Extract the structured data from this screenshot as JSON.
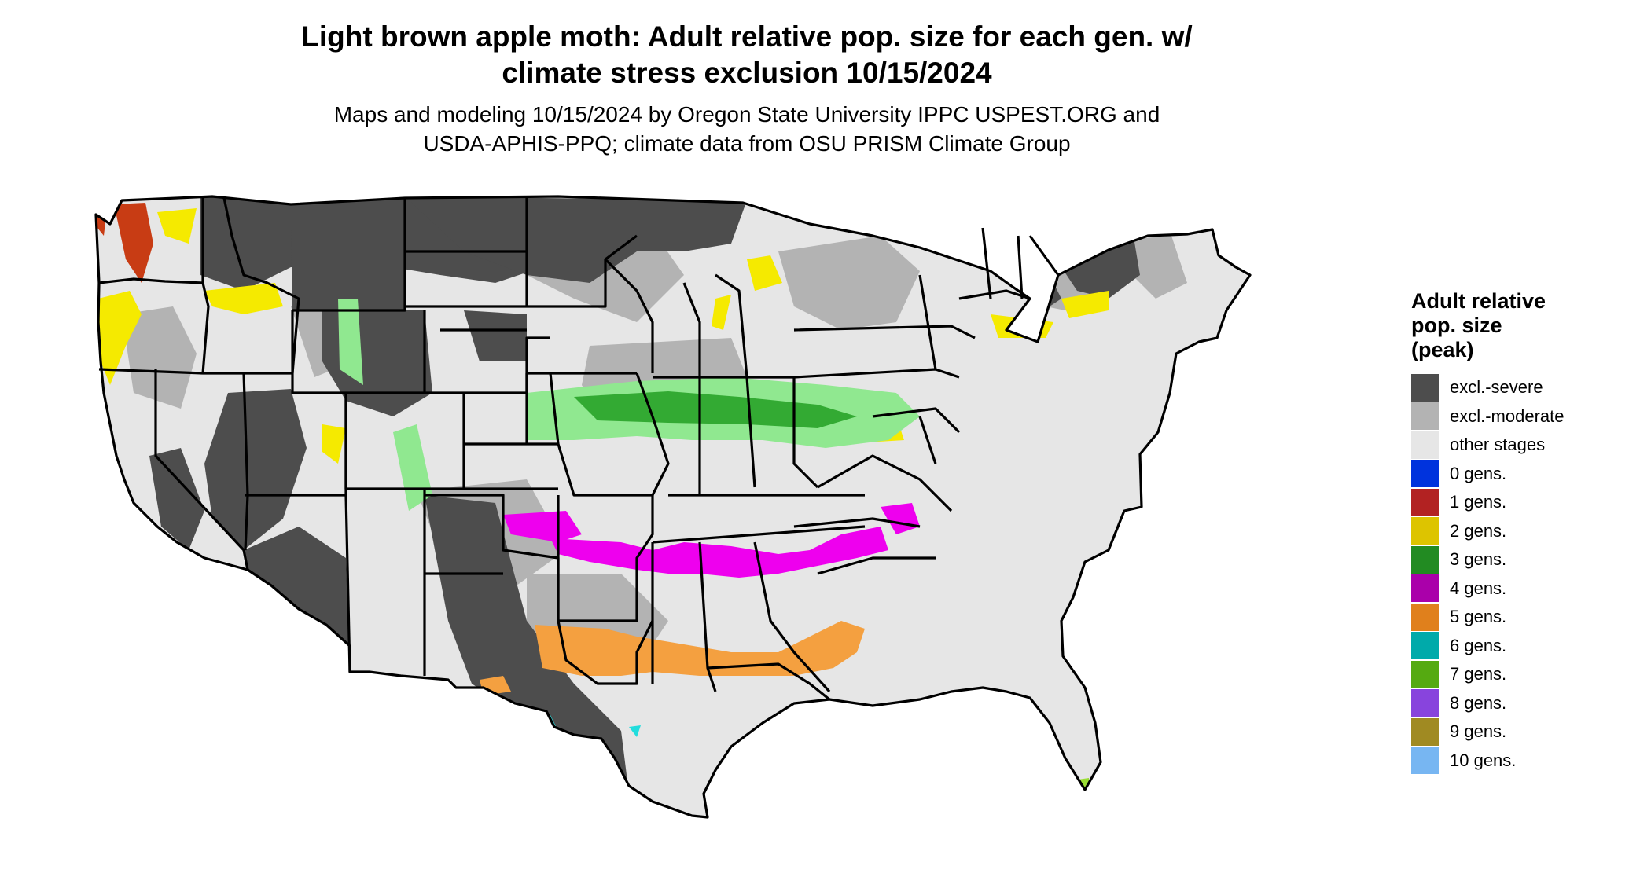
{
  "title": {
    "line1": "Light brown apple moth: Adult relative pop. size for each gen. w/",
    "line2": "climate stress exclusion 10/15/2024"
  },
  "subtitle": {
    "line1": "Maps and modeling 10/15/2024 by Oregon State University IPPC USPEST.ORG and",
    "line2": "USDA-APHIS-PPQ; climate data from OSU PRISM Climate Group"
  },
  "legend": {
    "title_lines": [
      "Adult relative",
      "pop. size",
      "(peak)"
    ],
    "items": [
      {
        "label": "excl.-severe",
        "color": "#4d4d4d"
      },
      {
        "label": "excl.-moderate",
        "color": "#b3b3b3"
      },
      {
        "label": "other stages",
        "color": "#e6e6e6"
      },
      {
        "label": "0 gens.",
        "color": "#0033dd"
      },
      {
        "label": "1 gens.",
        "color": "#b22222"
      },
      {
        "label": "2 gens.",
        "color": "#ddc400"
      },
      {
        "label": "3 gens.",
        "color": "#228b22"
      },
      {
        "label": "4 gens.",
        "color": "#aa00aa"
      },
      {
        "label": "5 gens.",
        "color": "#e0801c"
      },
      {
        "label": "6 gens.",
        "color": "#00aaaa"
      },
      {
        "label": "7 gens.",
        "color": "#55aa11"
      },
      {
        "label": "8 gens.",
        "color": "#8844dd"
      },
      {
        "label": "9 gens.",
        "color": "#a08a22"
      },
      {
        "label": "10 gens.",
        "color": "#77b6f2"
      }
    ]
  },
  "map_colors": {
    "state_border": "#000000",
    "excl_severe": "#4d4d4d",
    "excl_moderate": "#b3b3b3",
    "other_stages": "#e6e6e6",
    "gen1_area": "#c83c14",
    "gen2_area": "#f5ea00",
    "gen3_light": "#90e890",
    "gen3_dark": "#33aa33",
    "gen4_area": "#ee00ee",
    "gen5_area": "#f4a040",
    "gen6_area": "#22dddd",
    "gen7_area": "#99dd33"
  }
}
